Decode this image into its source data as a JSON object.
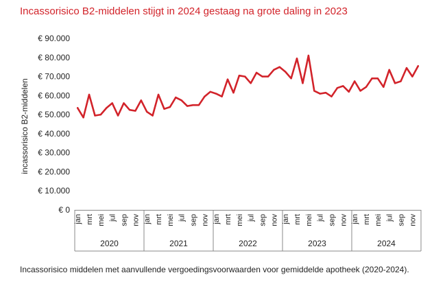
{
  "title": "Incassorisico B2-middelen stijgt in 2024 gestaag na grote daling in 2023",
  "caption": "Incassorisico middelen met aanvullende vergoedingsvoorwaarden voor gemiddelde apotheek (2020-2024).",
  "colors": {
    "title": "#d2232a",
    "line": "#d2232a",
    "axis": "#888888"
  },
  "chart_data": {
    "type": "line",
    "title": "Incassorisico B2-middelen stijgt in 2024 gestaag na grote daling in 2023",
    "xlabel": "",
    "ylabel": "incassorisico B2-middelen",
    "ylim": [
      0,
      90000
    ],
    "yticks": [
      0,
      10000,
      20000,
      30000,
      40000,
      50000,
      60000,
      70000,
      80000,
      90000
    ],
    "ytick_labels": [
      "€ 0",
      "€ 10.000",
      "€ 20.000",
      "€ 30.000",
      "€ 40.000",
      "€ 50.000",
      "€ 60.000",
      "€ 70.000",
      "€ 80.000",
      "€ 90.000"
    ],
    "grid": false,
    "legend": "none",
    "month_labels": [
      "jan",
      "mrt",
      "mei",
      "jul",
      "sep",
      "nov"
    ],
    "years": [
      "2020",
      "2021",
      "2022",
      "2023",
      "2024"
    ],
    "series": [
      {
        "values": [
          53500,
          48500,
          60500,
          49500,
          50000,
          53500,
          56000,
          49500,
          56000,
          52500,
          52000,
          57500,
          51500,
          49500,
          60500,
          53000,
          54000,
          59000,
          57500,
          54500,
          55000,
          55000,
          59500,
          62000,
          61000,
          59500,
          68500,
          61500,
          70500,
          70000,
          66500,
          72000,
          70000,
          70000,
          73500,
          75000,
          72500,
          69000,
          79500,
          66500,
          81000,
          62500,
          61000,
          61500,
          59500,
          64000,
          65000,
          62000,
          67500,
          62500,
          64500,
          69000,
          69000,
          64500,
          73500,
          66500,
          67500,
          74500,
          70000,
          75500
        ]
      }
    ]
  }
}
